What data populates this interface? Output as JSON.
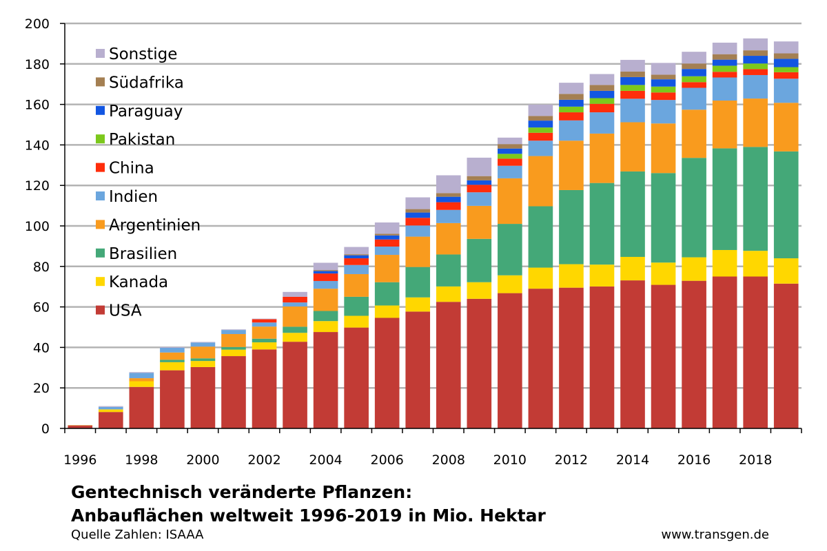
{
  "chart_data": {
    "type": "bar",
    "stacked": true,
    "title": "Gentechnisch veränderte Pflanzen: Anbauflächen weltweit 1996-2019 in Mio. Hektar",
    "title_lines": [
      "Gentechnisch veränderte Pflanzen:",
      "Anbauflächen weltweit 1996-2019 in Mio. Hektar"
    ],
    "source": "Quelle Zahlen: ISAAA",
    "website": "www.transgen.de",
    "xlabel": "",
    "ylabel": "",
    "ylim": [
      0,
      200
    ],
    "yticks": [
      0,
      20,
      40,
      60,
      80,
      100,
      120,
      140,
      160,
      180,
      200
    ],
    "grid": true,
    "legend_position": "top-left",
    "categories": [
      "1996",
      "1997",
      "1998",
      "1999",
      "2000",
      "2001",
      "2002",
      "2003",
      "2004",
      "2005",
      "2006",
      "2007",
      "2008",
      "2009",
      "2010",
      "2011",
      "2012",
      "2013",
      "2014",
      "2015",
      "2016",
      "2017",
      "2018",
      "2019"
    ],
    "xtick_labels": [
      "1996",
      "",
      "1998",
      "",
      "2000",
      "",
      "2002",
      "",
      "2004",
      "",
      "2006",
      "",
      "2008",
      "",
      "2010",
      "",
      "2012",
      "",
      "2014",
      "",
      "2016",
      "",
      "2018",
      ""
    ],
    "series": [
      {
        "name": "USA",
        "color": "#c23b35",
        "values": [
          1.5,
          8.1,
          20.5,
          28.7,
          30.3,
          35.7,
          39.0,
          42.8,
          47.6,
          49.8,
          54.6,
          57.7,
          62.5,
          64.0,
          66.8,
          69.0,
          69.5,
          70.1,
          73.1,
          70.9,
          72.9,
          75.0,
          75.0,
          71.5
        ]
      },
      {
        "name": "Kanada",
        "color": "#ffd700",
        "values": [
          0.1,
          1.3,
          2.8,
          4.0,
          3.0,
          3.2,
          3.5,
          4.4,
          5.4,
          5.8,
          6.1,
          7.0,
          7.6,
          8.2,
          8.8,
          10.4,
          11.6,
          10.8,
          11.6,
          11.0,
          11.6,
          13.1,
          12.7,
          12.5
        ]
      },
      {
        "name": "Brasilien",
        "color": "#44a878",
        "values": [
          0,
          0,
          0,
          1.2,
          1.3,
          1.3,
          1.8,
          3.0,
          5.0,
          9.4,
          11.5,
          15.0,
          15.8,
          21.4,
          25.4,
          30.3,
          36.6,
          40.3,
          42.2,
          44.2,
          49.1,
          50.2,
          51.3,
          52.8
        ]
      },
      {
        "name": "Argentinien",
        "color": "#f99b1e",
        "values": [
          0,
          0,
          1.5,
          3.6,
          5.8,
          6.4,
          6.0,
          10.0,
          11.0,
          11.2,
          13.5,
          15.0,
          15.5,
          16.3,
          22.5,
          24.8,
          24.4,
          24.4,
          24.3,
          24.5,
          23.8,
          23.6,
          23.9,
          24.0
        ]
      },
      {
        "name": "Indien",
        "color": "#6ba6de",
        "values": [
          0,
          1.2,
          2.6,
          2.3,
          2.0,
          2.0,
          2.0,
          2.0,
          3.8,
          4.5,
          4.1,
          5.5,
          6.5,
          6.7,
          6.2,
          7.6,
          10.0,
          10.5,
          11.6,
          11.6,
          10.8,
          11.4,
          11.6,
          11.9
        ]
      },
      {
        "name": "China",
        "color": "#ff2d0b",
        "values": [
          0,
          0,
          0,
          0,
          0,
          0,
          1.6,
          2.8,
          3.7,
          3.3,
          3.5,
          3.8,
          3.8,
          3.7,
          3.5,
          3.9,
          4.0,
          4.2,
          3.9,
          3.7,
          2.8,
          2.8,
          2.9,
          3.2
        ]
      },
      {
        "name": "Pakistan",
        "color": "#7cc81c",
        "values": [
          0,
          0,
          0,
          0,
          0,
          0,
          0,
          0,
          0,
          0,
          0,
          0,
          0,
          0,
          2.4,
          2.6,
          2.8,
          2.8,
          2.9,
          2.9,
          2.9,
          3.0,
          2.8,
          2.5
        ]
      },
      {
        "name": "Paraguay",
        "color": "#1256e2",
        "values": [
          0,
          0,
          0,
          0,
          0,
          0,
          0,
          0,
          1.2,
          1.5,
          2.0,
          2.6,
          2.7,
          2.2,
          2.6,
          3.4,
          3.4,
          3.6,
          3.9,
          3.6,
          3.6,
          3.0,
          3.8,
          4.1
        ]
      },
      {
        "name": "Südafrika",
        "color": "#a47f52",
        "values": [
          0,
          0,
          0,
          0,
          0,
          0,
          0,
          0,
          0.5,
          0.5,
          0.8,
          1.7,
          1.8,
          2.1,
          2.2,
          2.3,
          2.9,
          2.9,
          2.7,
          2.3,
          2.7,
          2.7,
          2.7,
          2.7
        ]
      },
      {
        "name": "Sonstige",
        "color": "#b8afcf",
        "values": [
          0,
          0.4,
          0.4,
          0.4,
          0.3,
          0.3,
          0.3,
          2.4,
          3.6,
          3.6,
          5.6,
          5.8,
          8.8,
          9.1,
          3.2,
          5.6,
          5.5,
          5.4,
          5.8,
          5.8,
          5.8,
          5.7,
          5.9,
          5.9
        ]
      }
    ]
  }
}
